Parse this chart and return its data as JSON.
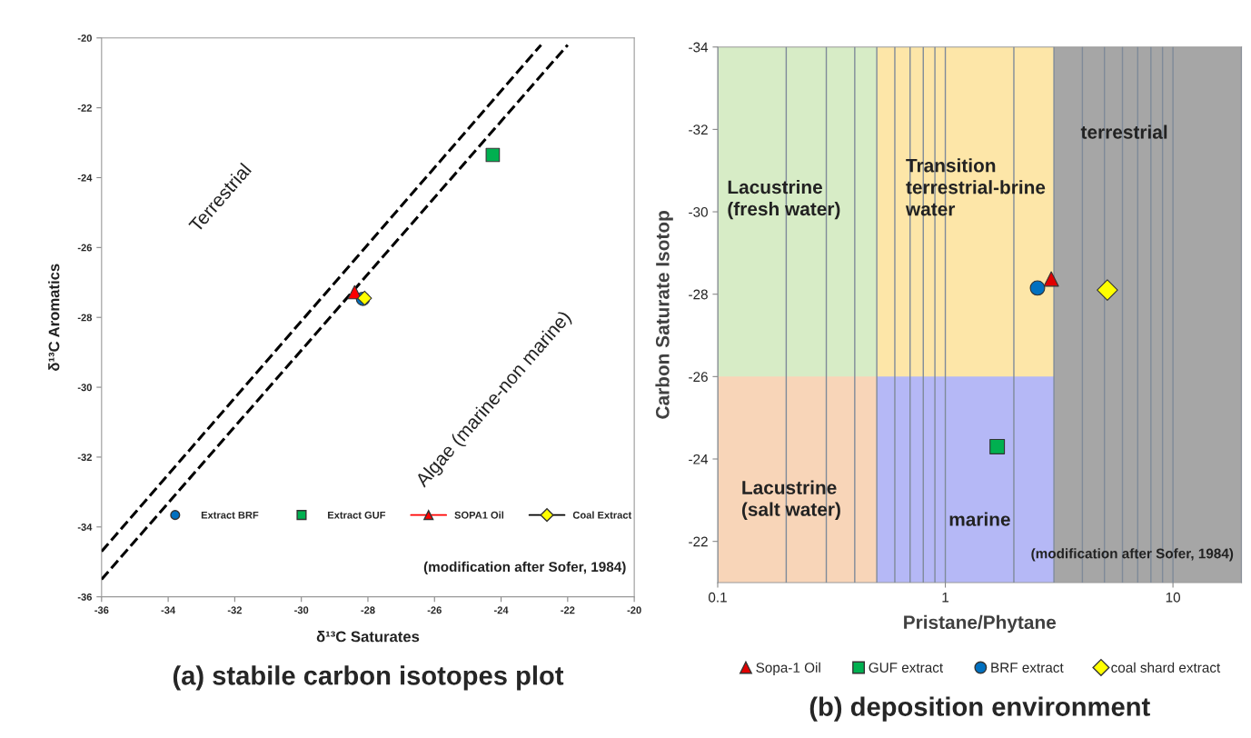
{
  "chart_data": [
    {
      "type": "scatter",
      "title": "(a) stabile carbon isotopes plot",
      "xlabel": "δ¹³C Saturates",
      "ylabel": "δ¹³C Aromatics",
      "xlim": [
        -36,
        -20
      ],
      "ylim": [
        -36,
        -20
      ],
      "xticks": [
        -36,
        -34,
        -32,
        -30,
        -28,
        -26,
        -24,
        -22,
        -20
      ],
      "yticks": [
        -36,
        -34,
        -32,
        -30,
        -28,
        -26,
        -24,
        -22,
        -20
      ],
      "legend": "bottom",
      "series": [
        {
          "type": "line",
          "color": "#000000",
          "line_style": "dashed",
          "marker": "none",
          "x": [
            -36,
            -22.8
          ],
          "values": [
            -34.7,
            -20.2
          ]
        },
        {
          "type": "line",
          "color": "#000000",
          "line_style": "dashed",
          "marker": "none",
          "x": [
            -36,
            -22.0
          ],
          "values": [
            -35.5,
            -20.2
          ]
        },
        {
          "name": "Extract BRF",
          "color": "#0070c0",
          "marker": "circle",
          "x": [
            -28.15
          ],
          "values": [
            -27.47
          ]
        },
        {
          "name": "Extract GUF",
          "color": "#00b050",
          "marker": "square",
          "x": [
            -24.25
          ],
          "values": [
            -23.35
          ]
        },
        {
          "name": "SOPA1 Oil",
          "color": "#ff0000",
          "marker": "triangle",
          "line_style": "solid",
          "x": [
            -28.4
          ],
          "values": [
            -27.28
          ]
        },
        {
          "name": "Coal Extract",
          "color": "#ffff00",
          "marker": "diamond",
          "line_style": "solid",
          "x": [
            -28.1
          ],
          "values": [
            -27.45
          ]
        }
      ],
      "annotations": [
        "Terrestrial",
        "Algae (marine-non marine)",
        "(modification after Sofer, 1984)"
      ]
    },
    {
      "type": "scatter",
      "title": "(b) deposition environment",
      "xlabel": "Pristane/Phytane",
      "ylabel": "Carbon Saturate Isotop",
      "log": "x",
      "xlim": [
        0.1,
        20
      ],
      "ylim": [
        -21,
        -34
      ],
      "xticks": [
        0.1,
        1,
        10
      ],
      "yticks": [
        -34,
        -32,
        -30,
        -28,
        -26,
        -24,
        -22
      ],
      "grid": "x",
      "legend": "bottom",
      "series": [
        {
          "type": "area",
          "color": "#d7ecc6",
          "x": [
            0.1,
            0.5
          ],
          "values": [
            -34,
            -34
          ]
        },
        {
          "type": "area",
          "color": "#f8d5b8",
          "x": [
            0.1,
            0.5
          ],
          "values": [
            -26,
            -26
          ]
        },
        {
          "type": "area",
          "color": "#fde6a8",
          "x": [
            0.5,
            3
          ],
          "values": [
            -34,
            -34
          ]
        },
        {
          "type": "area",
          "color": "#b5b8f6",
          "x": [
            0.5,
            3
          ],
          "values": [
            -26,
            -26
          ]
        },
        {
          "type": "area",
          "color": "#a6a6a6",
          "x": [
            3,
            20
          ],
          "values": [
            -34,
            -34
          ]
        },
        {
          "name": "Sopa-1 Oil",
          "color": "#e00000",
          "marker": "triangle",
          "x": [
            2.92
          ],
          "values": [
            -28.37
          ]
        },
        {
          "name": "GUF extract",
          "color": "#00b050",
          "marker": "square",
          "x": [
            1.69
          ],
          "values": [
            -24.3
          ]
        },
        {
          "name": "BRF extract",
          "color": "#0070c0",
          "marker": "circle",
          "x": [
            2.54
          ],
          "values": [
            -28.15
          ]
        },
        {
          "name": "coal shard extract",
          "color": "#ffff00",
          "marker": "diamond",
          "x": [
            5.15
          ],
          "values": [
            -28.1
          ]
        }
      ],
      "annotations": [
        "Lacustrine\n(fresh water)",
        "Transition\nterrestrial-brine\nwater",
        "terrestrial",
        "Lacustrine\n(salt water)",
        "marine",
        "(modification after Sofer, 1984)"
      ]
    }
  ]
}
